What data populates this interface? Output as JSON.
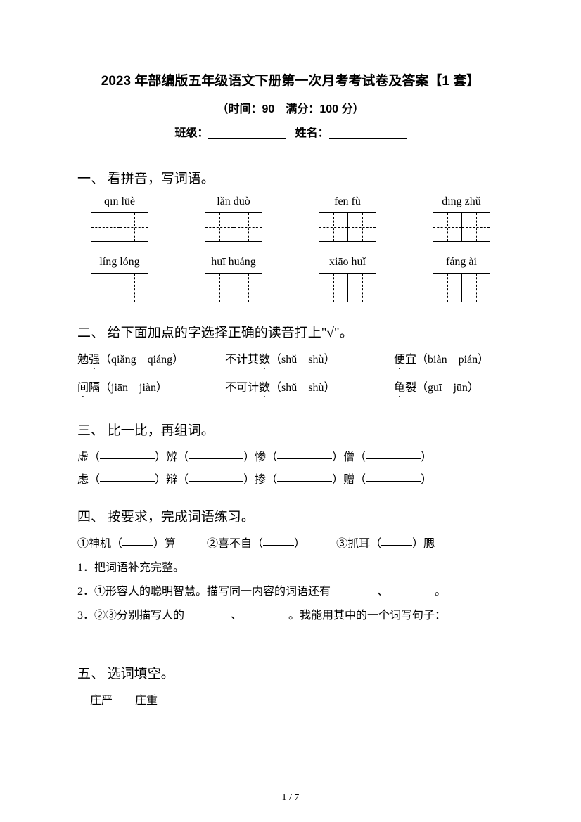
{
  "header": {
    "title": "2023 年部编版五年级语文下册第一次月考考试卷及答案【1 套】",
    "subtitle": "（时间：90　满分：100 分）",
    "class_label": "班级：",
    "name_label": "姓名："
  },
  "sections": {
    "s1": {
      "title": "一、 看拼音，写词语。",
      "rows": [
        [
          "qīn lüè",
          "lǎn duò",
          "fēn fù",
          "dīng  zhǔ"
        ],
        [
          "líng lóng",
          "huī huáng",
          "xiāo huǐ",
          "fáng  ài"
        ]
      ]
    },
    "s2": {
      "title": "二、 给下面加点的字选择正确的读音打上\"√\"。",
      "rows": [
        {
          "c1": {
            "pre": "勉",
            "dot": "强",
            "post": "（qiǎng　qiáng）"
          },
          "c2": {
            "pre": "不计其",
            "dot": "数",
            "post": "（shǔ　shù）"
          },
          "c3": {
            "pre": "",
            "dot": "便",
            "post": "宜（biàn　pián）"
          }
        },
        {
          "c1": {
            "pre": "",
            "dot": "间",
            "post": "隔（jiān　jiàn）"
          },
          "c2": {
            "pre": "不可计",
            "dot": "数",
            "post": "（shǔ　shù）"
          },
          "c3": {
            "pre": "",
            "dot": "龟",
            "post": "裂（guī　jūn）"
          }
        }
      ]
    },
    "s3": {
      "title": "三、 比一比，再组词。",
      "rows": [
        [
          "虚",
          "辨",
          "惨",
          "僧"
        ],
        [
          "虑",
          "辩",
          "掺",
          "赠"
        ]
      ]
    },
    "s4": {
      "title": "四、 按要求，完成词语练习。",
      "line1_parts": {
        "a_pre": "①神机（",
        "a_post": "）算",
        "b_pre": "②喜不自（",
        "b_post": "）",
        "c_pre": "③抓耳（",
        "c_post": "）腮"
      },
      "line2": "1．把词语补充完整。",
      "line3_pre": "2．①形容人的聪明智慧。描写同一内容的词语还有",
      "line3_sep": "、",
      "line3_end": "。",
      "line4_pre": "3．②③分别描写人的",
      "line4_sep": "、",
      "line4_mid": "。我能用其中的一个词写句子："
    },
    "s5": {
      "title": "五、 选词填空。",
      "words": "庄严　　庄重"
    }
  },
  "page_number": "1 / 7"
}
